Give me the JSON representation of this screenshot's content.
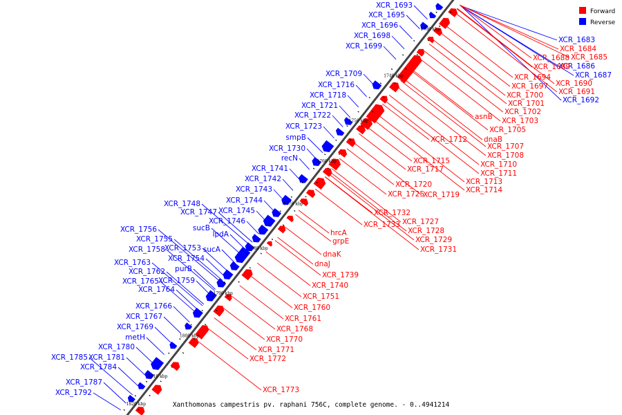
{
  "legend": [
    {
      "label": "Forward",
      "color": "#ff0000"
    },
    {
      "label": "Reverse",
      "color": "#0000ff"
    }
  ],
  "caption": "Xanthomonas campestris pv. raphani 756C, complete genome. - 0..4941214",
  "colors": {
    "forward": "#ff0000",
    "reverse": "#0000ff",
    "backbone": "#444444"
  },
  "ticks": [
    "1730 kbp",
    "1740 kbp",
    "1750 kbp",
    "1760 kbp",
    "1770 kbp",
    "1780 kbp",
    "1790 kbp",
    "1800 kbp",
    "1810 kbp",
    "1820 kbp"
  ],
  "reverse_labels": [
    "XCR_1693",
    "XCR_1695",
    "XCR_1696",
    "XCR_1698",
    "XCR_1699",
    "XCR_1709",
    "XCR_1716",
    "XCR_1718",
    "XCR_1721",
    "XCR_1722",
    "XCR_1723",
    "smpB",
    "XCR_1730",
    "recN",
    "XCR_1741",
    "XCR_1742",
    "XCR_1743",
    "XCR_1744",
    "XCR_1748",
    "XCR_1747",
    "XCR_1745",
    "XCR_1746",
    "sucB",
    "lpdA",
    "XCR_1756",
    "XCR_1755",
    "XCR_1753",
    "sucA",
    "XCR_1758",
    "XCR_1754",
    "XCR_1763",
    "purB",
    "XCR_1762",
    "XCR_1765",
    "XCR_1759",
    "XCR_1764",
    "XCR_1766",
    "XCR_1767",
    "XCR_1769",
    "metH",
    "XCR_1780",
    "XCR_1785",
    "XCR_1781",
    "XCR_1784",
    "XCR_1787",
    "XCR_1792",
    "XCR_1683",
    "XCR_1686",
    "XCR_1687",
    "XCR_1692"
  ],
  "forward_labels": [
    "XCR_1684",
    "XCR_1688",
    "XCR_1685",
    "XCR_1689",
    "XCR_1694",
    "XCR_1690",
    "XCR_1697",
    "XCR_1691",
    "XCR_1700",
    "XCR_1701",
    "XCR_1702",
    "asnB",
    "XCR_1703",
    "XCR_1705",
    "dnaB",
    "XCR_1712",
    "XCR_1707",
    "XCR_1708",
    "XCR_1715",
    "XCR_1710",
    "XCR_1717",
    "XCR_1711",
    "XCR_1713",
    "XCR_1720",
    "XCR_1714",
    "XCR_1725",
    "XCR_1719",
    "XCR_1732",
    "XCR_1727",
    "XCR_1733",
    "XCR_1728",
    "hrcA",
    "XCR_1729",
    "grpE",
    "XCR_1731",
    "dnaK",
    "dnaJ",
    "XCR_1739",
    "XCR_1740",
    "XCR_1751",
    "XCR_1760",
    "XCR_1761",
    "XCR_1768",
    "XCR_1770",
    "XCR_1771",
    "XCR_1772",
    "XCR_1773"
  ]
}
